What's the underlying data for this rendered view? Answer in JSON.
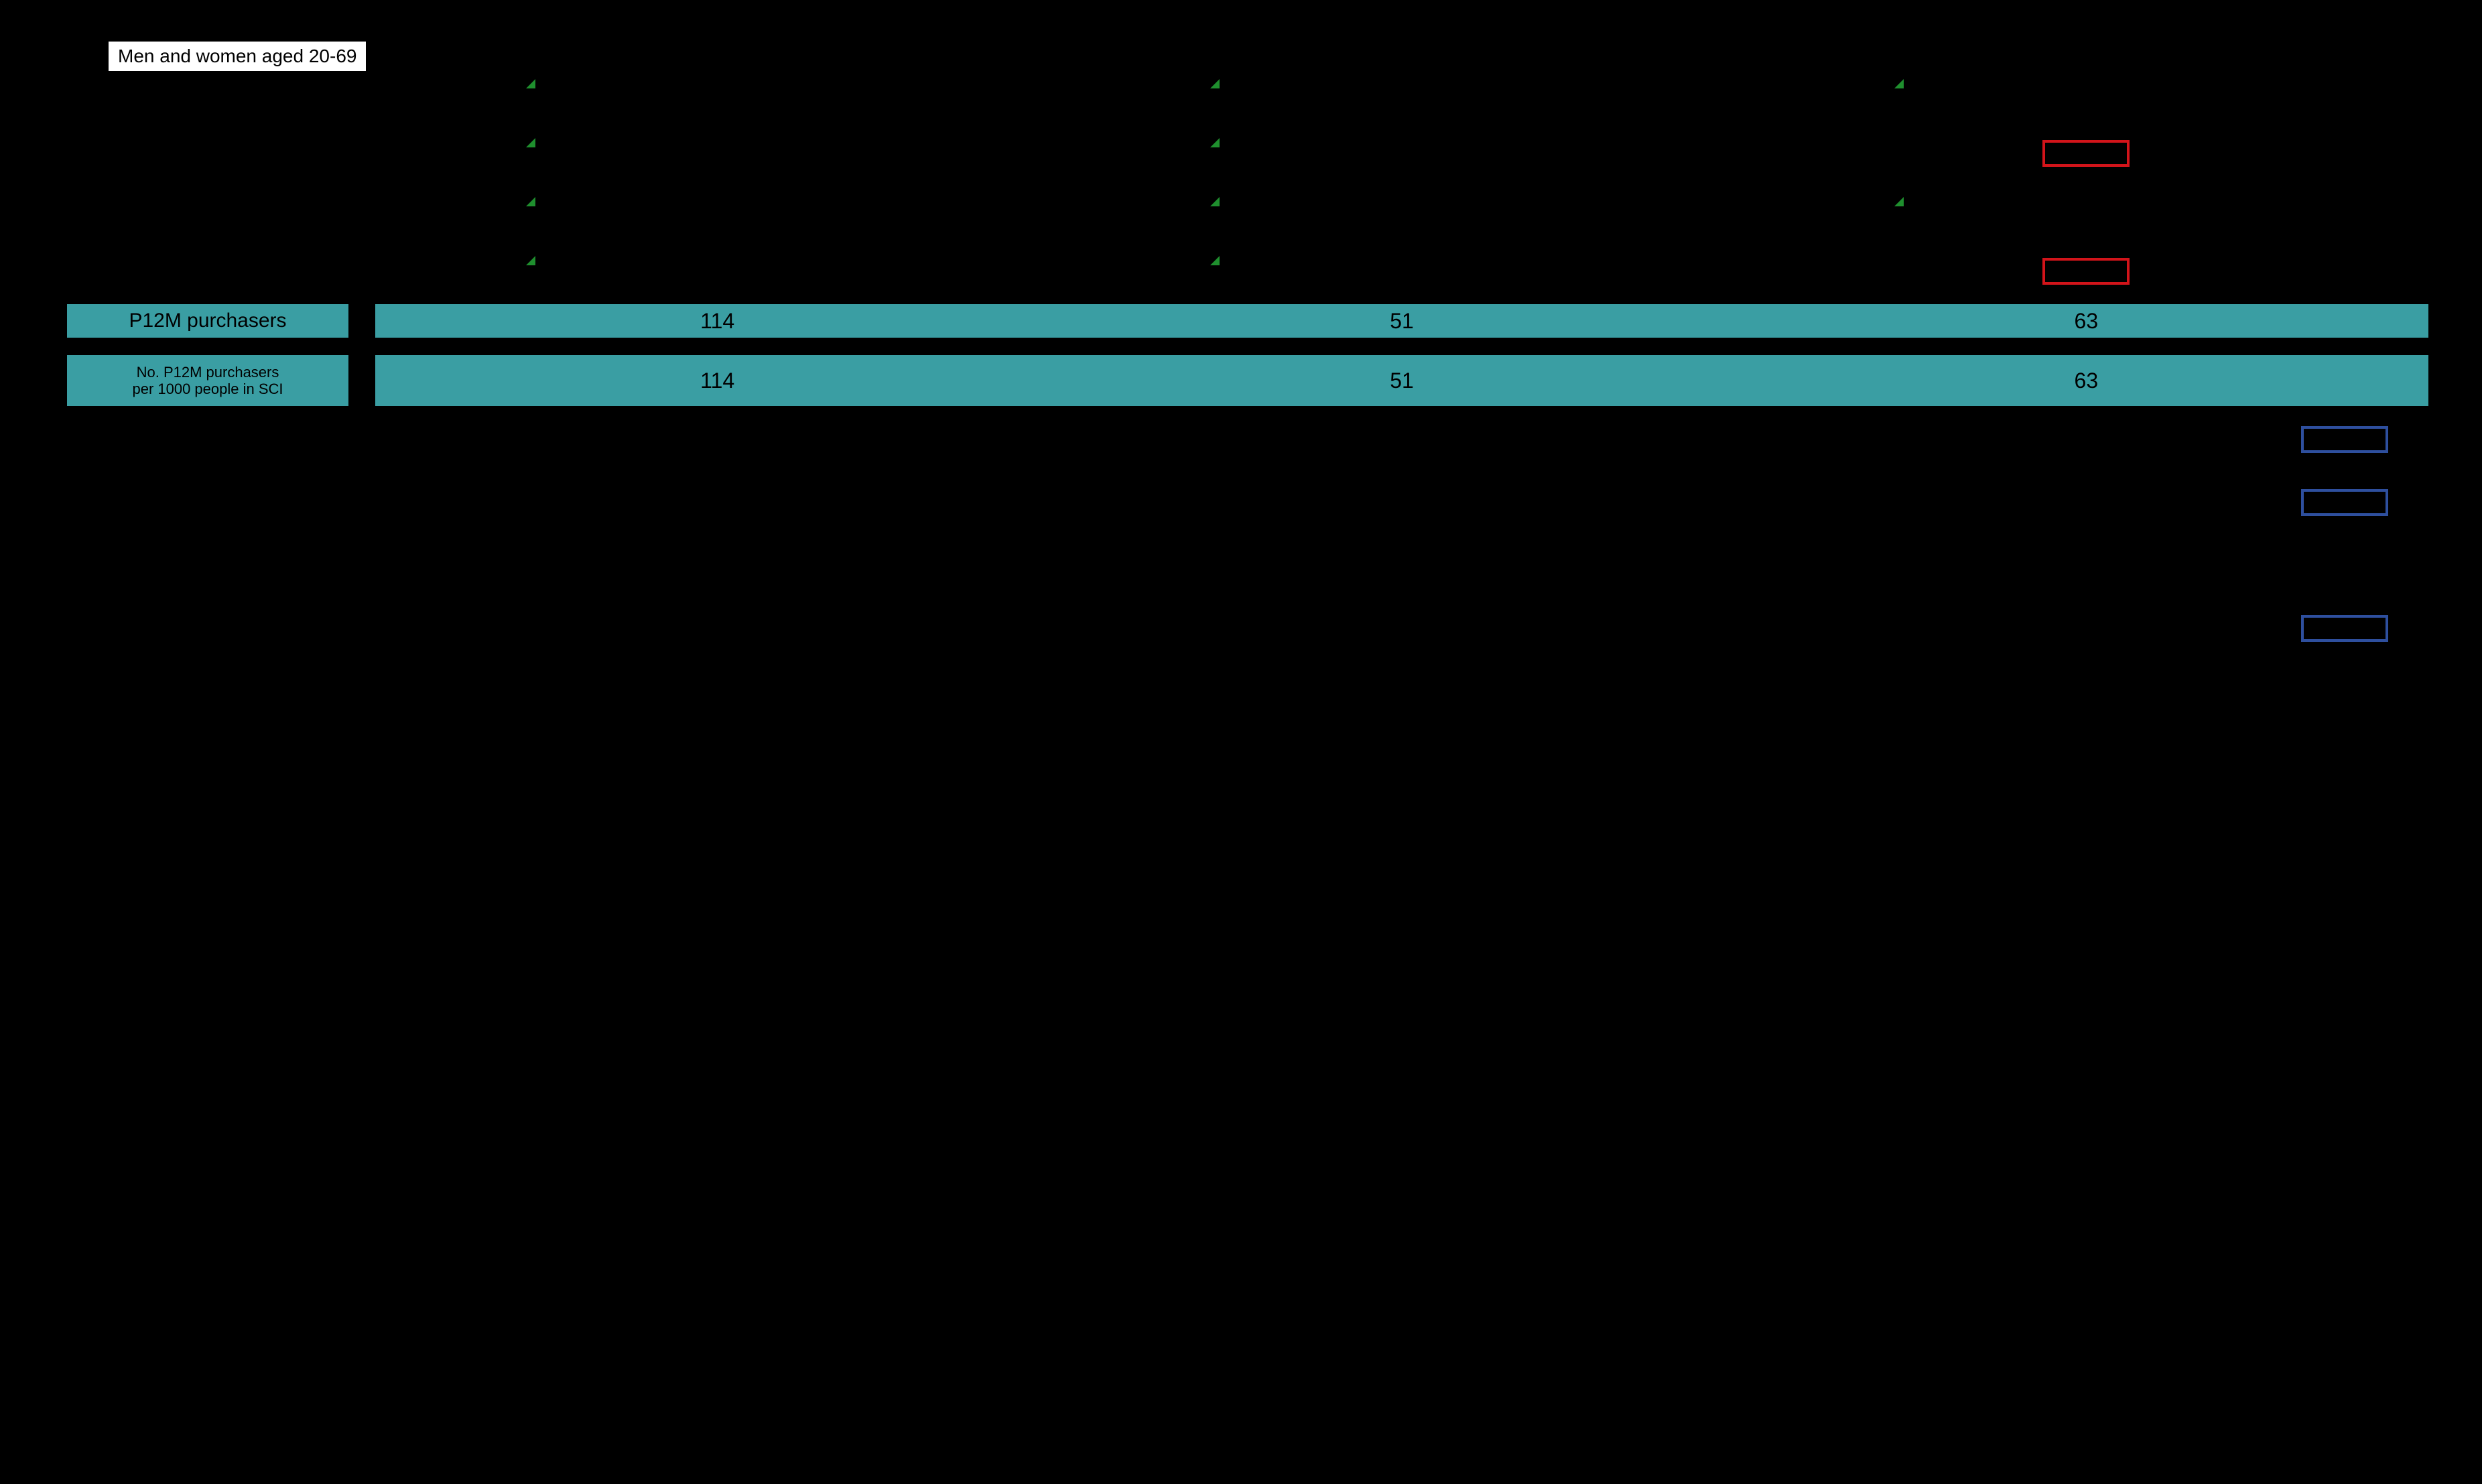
{
  "colors": {
    "background": "#000000",
    "white": "#ffffff",
    "border_black": "#000000",
    "teal": "#3a9ea3",
    "green_ind": "#1f8f2e",
    "red_box": "#d2141a",
    "blue_box": "#2e4f9e"
  },
  "fonts": {
    "family": "Verdana",
    "label_size_pt": 21,
    "value_size_pt": 24,
    "small_label_size_pt": 16
  },
  "top_label": "Men and women aged 20-69",
  "upper_rows_count": 4,
  "upper_rows": [
    {
      "cells": [
        "indicator",
        "indicator",
        "indicator"
      ]
    },
    {
      "cells": [
        "indicator",
        "indicator",
        "red-box"
      ]
    },
    {
      "cells": [
        "indicator",
        "indicator",
        "indicator"
      ]
    },
    {
      "cells": [
        "indicator",
        "indicator",
        "red-box"
      ]
    }
  ],
  "band1": {
    "label": "P12M purchasers",
    "values": [
      114,
      51,
      63
    ]
  },
  "band2": {
    "label_line1": "No. P12M purchasers",
    "label_line2": "per 1000 people in SCI",
    "values": [
      114,
      51,
      63
    ]
  },
  "lower_rows": [
    {
      "cells": [
        "",
        "",
        "blue-box"
      ]
    },
    {
      "cells": [
        "",
        "",
        "blue-box"
      ]
    },
    {
      "cells": [
        "",
        "",
        ""
      ]
    },
    {
      "cells": [
        "",
        "",
        "blue-box"
      ]
    }
  ]
}
